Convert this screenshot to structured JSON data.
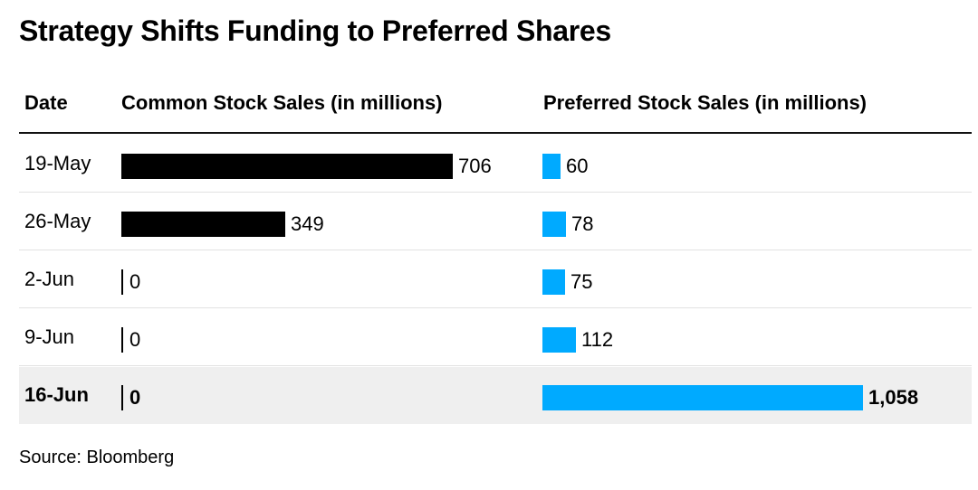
{
  "title": "Strategy Shifts Funding to Preferred Shares",
  "source": "Source: Bloomberg",
  "colors": {
    "common": "#000000",
    "preferred": "#00aaff",
    "highlight_row": "#efefef"
  },
  "chart_data": {
    "type": "bar",
    "title": "Strategy Shifts Funding to Preferred Shares",
    "columns": [
      "Date",
      "Common Stock Sales (in millions)",
      "Preferred Stock Sales (in millions)"
    ],
    "categories": [
      "19-May",
      "26-May",
      "2-Jun",
      "9-Jun",
      "16-Jun"
    ],
    "series": [
      {
        "name": "Common Stock Sales (in millions)",
        "values": [
          706,
          349,
          0,
          0,
          0
        ],
        "labels": [
          "706",
          "349",
          "0",
          "0",
          "0"
        ]
      },
      {
        "name": "Preferred Stock Sales (in millions)",
        "values": [
          60,
          78,
          75,
          112,
          1058
        ],
        "labels": [
          "60",
          "78",
          "75",
          "112",
          "1,058"
        ]
      }
    ],
    "highlighted_category": "16-Jun",
    "grid": false
  }
}
